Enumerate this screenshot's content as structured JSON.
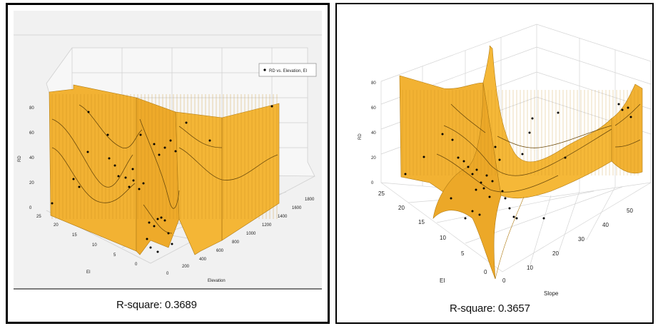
{
  "chart_data": [
    {
      "type": "surface",
      "legend": {
        "label": "RD vs. Elevation, EI",
        "position": "top-right"
      },
      "zlabel": "RD",
      "xlabel": "Elevation",
      "ylabel": "EI",
      "z_ticks": [
        "0",
        "20",
        "40",
        "60",
        "80"
      ],
      "x_ticks": [
        "0",
        "200",
        "400",
        "600",
        "800",
        "1000",
        "1200",
        "1400",
        "1600",
        "1800"
      ],
      "y_ticks": [
        "0",
        "5",
        "10",
        "15",
        "20",
        "25"
      ],
      "caption": "R-square: 0.3689",
      "colors": {
        "surface": "#f2b233",
        "surface_line": "#7a5a10",
        "background": "#f0f0f0",
        "points": "#000000"
      }
    },
    {
      "type": "surface",
      "zlabel": "RD",
      "xlabel": "Slope",
      "ylabel": "EI",
      "z_ticks": [
        "0",
        "20",
        "40",
        "60",
        "80"
      ],
      "x_ticks": [
        "0",
        "10",
        "20",
        "30",
        "40",
        "50"
      ],
      "y_ticks": [
        "0",
        "5",
        "10",
        "15",
        "20",
        "25"
      ],
      "caption": "R-square: 0.3657",
      "colors": {
        "surface": "#f2b233",
        "surface_line": "#7a5a10",
        "background": "#ffffff",
        "points": "#000000"
      }
    }
  ]
}
